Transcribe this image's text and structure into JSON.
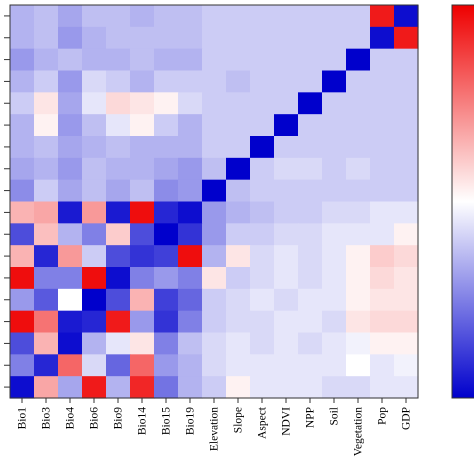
{
  "chart_data": {
    "type": "heatmap",
    "title": "",
    "xlabel": "",
    "ylabel": "",
    "x_labels": [
      "Bio1",
      "Bio3",
      "Bio4",
      "Bio6",
      "Bio9",
      "Bio14",
      "Bio15",
      "Bio19",
      "Elevation",
      "Slope",
      "Aspect",
      "NDVI",
      "NPP",
      "Soil",
      "Vegetation",
      "Pop",
      "GDP"
    ],
    "value_range": [
      -1,
      1
    ],
    "colorscale": {
      "low": "#0000cc",
      "mid": "#ffffff",
      "high": "#ee0000"
    },
    "colorbar": {
      "placement": "right",
      "tick_labels": []
    },
    "grid": false,
    "values": [
      [
        -0.3,
        -0.25,
        -0.35,
        -0.25,
        -0.25,
        -0.3,
        -0.25,
        -0.25,
        -0.2,
        -0.2,
        -0.2,
        -0.2,
        -0.2,
        -0.2,
        -0.2,
        0.9,
        -0.95
      ],
      [
        -0.3,
        -0.25,
        -0.4,
        -0.3,
        -0.25,
        -0.25,
        -0.25,
        -0.25,
        -0.2,
        -0.2,
        -0.2,
        -0.2,
        -0.2,
        -0.2,
        -0.2,
        -0.95,
        0.9
      ],
      [
        -0.4,
        -0.3,
        -0.25,
        -0.3,
        -0.3,
        -0.25,
        -0.3,
        -0.3,
        -0.2,
        -0.2,
        -0.2,
        -0.2,
        -0.2,
        -0.2,
        -1.0,
        -0.2,
        -0.2
      ],
      [
        -0.3,
        -0.2,
        -0.4,
        -0.15,
        -0.2,
        -0.3,
        -0.2,
        -0.2,
        -0.2,
        -0.25,
        -0.2,
        -0.2,
        -0.2,
        -1.0,
        -0.2,
        -0.2,
        -0.2
      ],
      [
        -0.2,
        0.1,
        -0.35,
        -0.1,
        0.15,
        0.1,
        0.05,
        -0.15,
        -0.2,
        -0.2,
        -0.2,
        -0.2,
        -1.0,
        -0.2,
        -0.2,
        -0.2,
        -0.2
      ],
      [
        -0.3,
        0.05,
        -0.4,
        -0.25,
        -0.1,
        0.05,
        -0.2,
        -0.3,
        -0.2,
        -0.2,
        -0.2,
        -1.0,
        -0.2,
        -0.2,
        -0.2,
        -0.2,
        -0.2
      ],
      [
        -0.3,
        -0.25,
        -0.35,
        -0.3,
        -0.25,
        -0.3,
        -0.3,
        -0.3,
        -0.2,
        -0.2,
        -1.0,
        -0.2,
        -0.2,
        -0.2,
        -0.2,
        -0.2,
        -0.2
      ],
      [
        -0.35,
        -0.3,
        -0.4,
        -0.25,
        -0.3,
        -0.3,
        -0.35,
        -0.4,
        -0.25,
        -1.0,
        -0.2,
        -0.15,
        -0.15,
        -0.2,
        -0.15,
        -0.2,
        -0.2
      ],
      [
        -0.45,
        -0.2,
        -0.35,
        -0.25,
        -0.35,
        -0.25,
        -0.45,
        -0.4,
        -1.0,
        -0.25,
        -0.2,
        -0.2,
        -0.2,
        -0.2,
        -0.2,
        -0.2,
        -0.2
      ],
      [
        0.3,
        0.35,
        -0.9,
        0.4,
        -0.9,
        0.95,
        -0.85,
        -0.95,
        -0.4,
        -0.3,
        -0.25,
        -0.2,
        -0.2,
        -0.15,
        -0.15,
        -0.1,
        -0.1
      ],
      [
        -0.7,
        0.25,
        -0.3,
        -0.5,
        0.2,
        -0.7,
        -1.0,
        -0.8,
        -0.4,
        -0.2,
        -0.2,
        -0.15,
        -0.15,
        -0.1,
        -0.1,
        -0.1,
        0.05
      ],
      [
        0.3,
        -0.85,
        0.4,
        -0.2,
        -0.7,
        -0.8,
        -0.75,
        0.95,
        -0.3,
        0.1,
        -0.15,
        -0.1,
        -0.15,
        -0.1,
        0.05,
        0.2,
        0.15
      ],
      [
        0.95,
        -0.5,
        -0.5,
        0.95,
        -0.95,
        -0.5,
        -0.4,
        -0.5,
        0.1,
        -0.2,
        -0.15,
        -0.1,
        -0.15,
        -0.1,
        0.05,
        0.15,
        0.1
      ],
      [
        -0.4,
        -0.65,
        0.0,
        -1.0,
        -0.7,
        0.3,
        -0.75,
        -0.6,
        -0.2,
        -0.15,
        -0.1,
        -0.15,
        -0.1,
        -0.1,
        0.05,
        0.1,
        0.1
      ],
      [
        0.95,
        0.55,
        -0.9,
        -0.85,
        0.9,
        -0.4,
        -0.8,
        -0.5,
        -0.2,
        -0.15,
        -0.15,
        -0.1,
        -0.1,
        -0.15,
        0.1,
        0.15,
        0.15
      ],
      [
        -0.7,
        0.3,
        -0.95,
        -0.3,
        -0.1,
        0.1,
        -0.5,
        -0.25,
        -0.15,
        -0.1,
        -0.15,
        -0.1,
        -0.15,
        -0.1,
        -0.05,
        0.05,
        0.05
      ],
      [
        -0.5,
        -0.85,
        0.6,
        -0.15,
        -0.6,
        0.6,
        -0.4,
        -0.3,
        -0.15,
        -0.1,
        -0.1,
        -0.1,
        -0.1,
        -0.1,
        0.0,
        -0.1,
        -0.05
      ],
      [
        -0.95,
        0.35,
        -0.35,
        0.9,
        -0.3,
        0.85,
        -0.55,
        -0.3,
        -0.2,
        0.05,
        -0.1,
        -0.1,
        -0.1,
        -0.15,
        -0.15,
        -0.1,
        -0.1
      ]
    ]
  }
}
